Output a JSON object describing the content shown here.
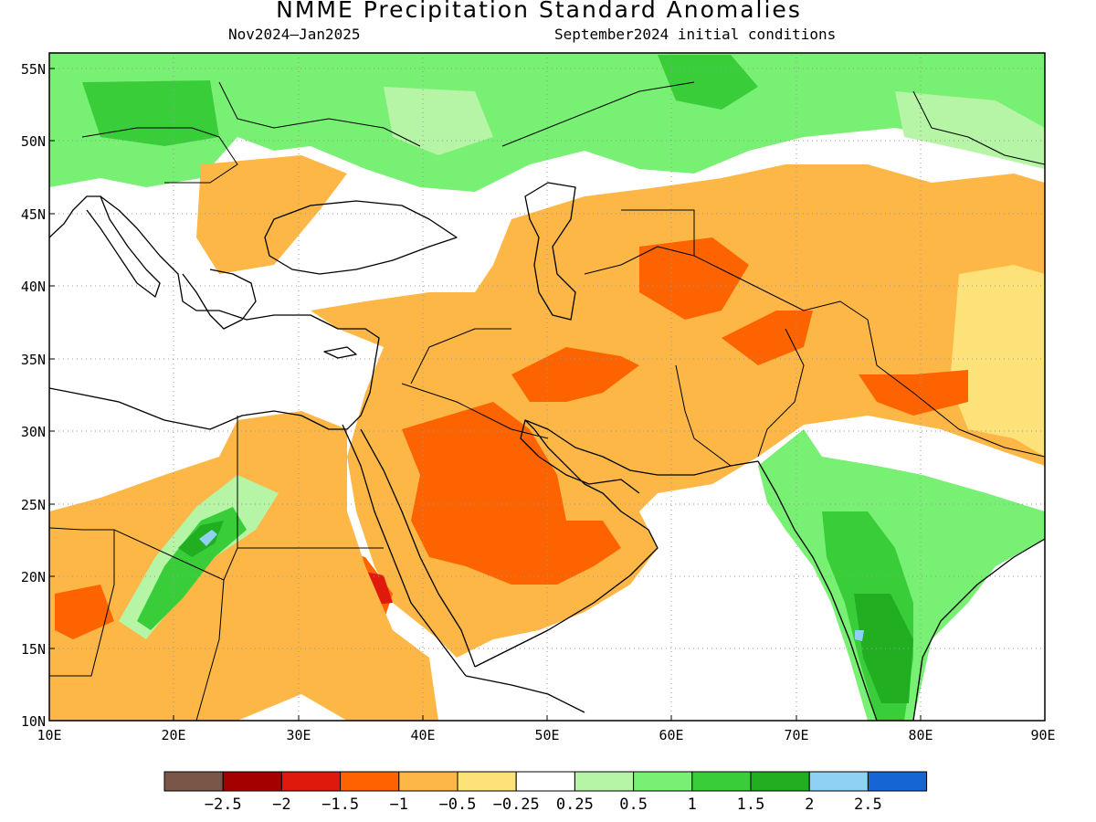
{
  "title": "NMME Precipitation Standard Anomalies",
  "period": "Nov2024–Jan2025",
  "initial_conditions": "September2024 initial conditions",
  "lat_ticks": [
    "10N",
    "15N",
    "20N",
    "25N",
    "30N",
    "35N",
    "40N",
    "45N",
    "50N",
    "55N"
  ],
  "lon_ticks": [
    "10E",
    "20E",
    "30E",
    "40E",
    "50E",
    "60E",
    "70E",
    "80E",
    "90E"
  ],
  "colorbar": {
    "colors": [
      "#7a5648",
      "#a50000",
      "#df1a0c",
      "#fd6400",
      "#fdb747",
      "#fde27a",
      "#ffffff",
      "#b5f5a5",
      "#78f073",
      "#3acd3a",
      "#21ae21",
      "#8fd0f5",
      "#1565d4"
    ],
    "labels": [
      "−2.5",
      "−2",
      "−1.5",
      "−1",
      "−0.5",
      "−0.25",
      "0.25",
      "0.5",
      "1",
      "1.5",
      "2",
      "2.5"
    ]
  },
  "palette": {
    "very_dry": "#a50000",
    "dry_strong": "#df1a0c",
    "dry": "#fd6400",
    "dry_moderate": "#fdb747",
    "dry_weak": "#fde27a",
    "neutral": "#ffffff",
    "wet_weak": "#b5f5a5",
    "wet": "#78f073",
    "wet_moderate": "#3acd3a",
    "wet_strong": "#21ae21",
    "very_wet": "#8fd0f5"
  }
}
